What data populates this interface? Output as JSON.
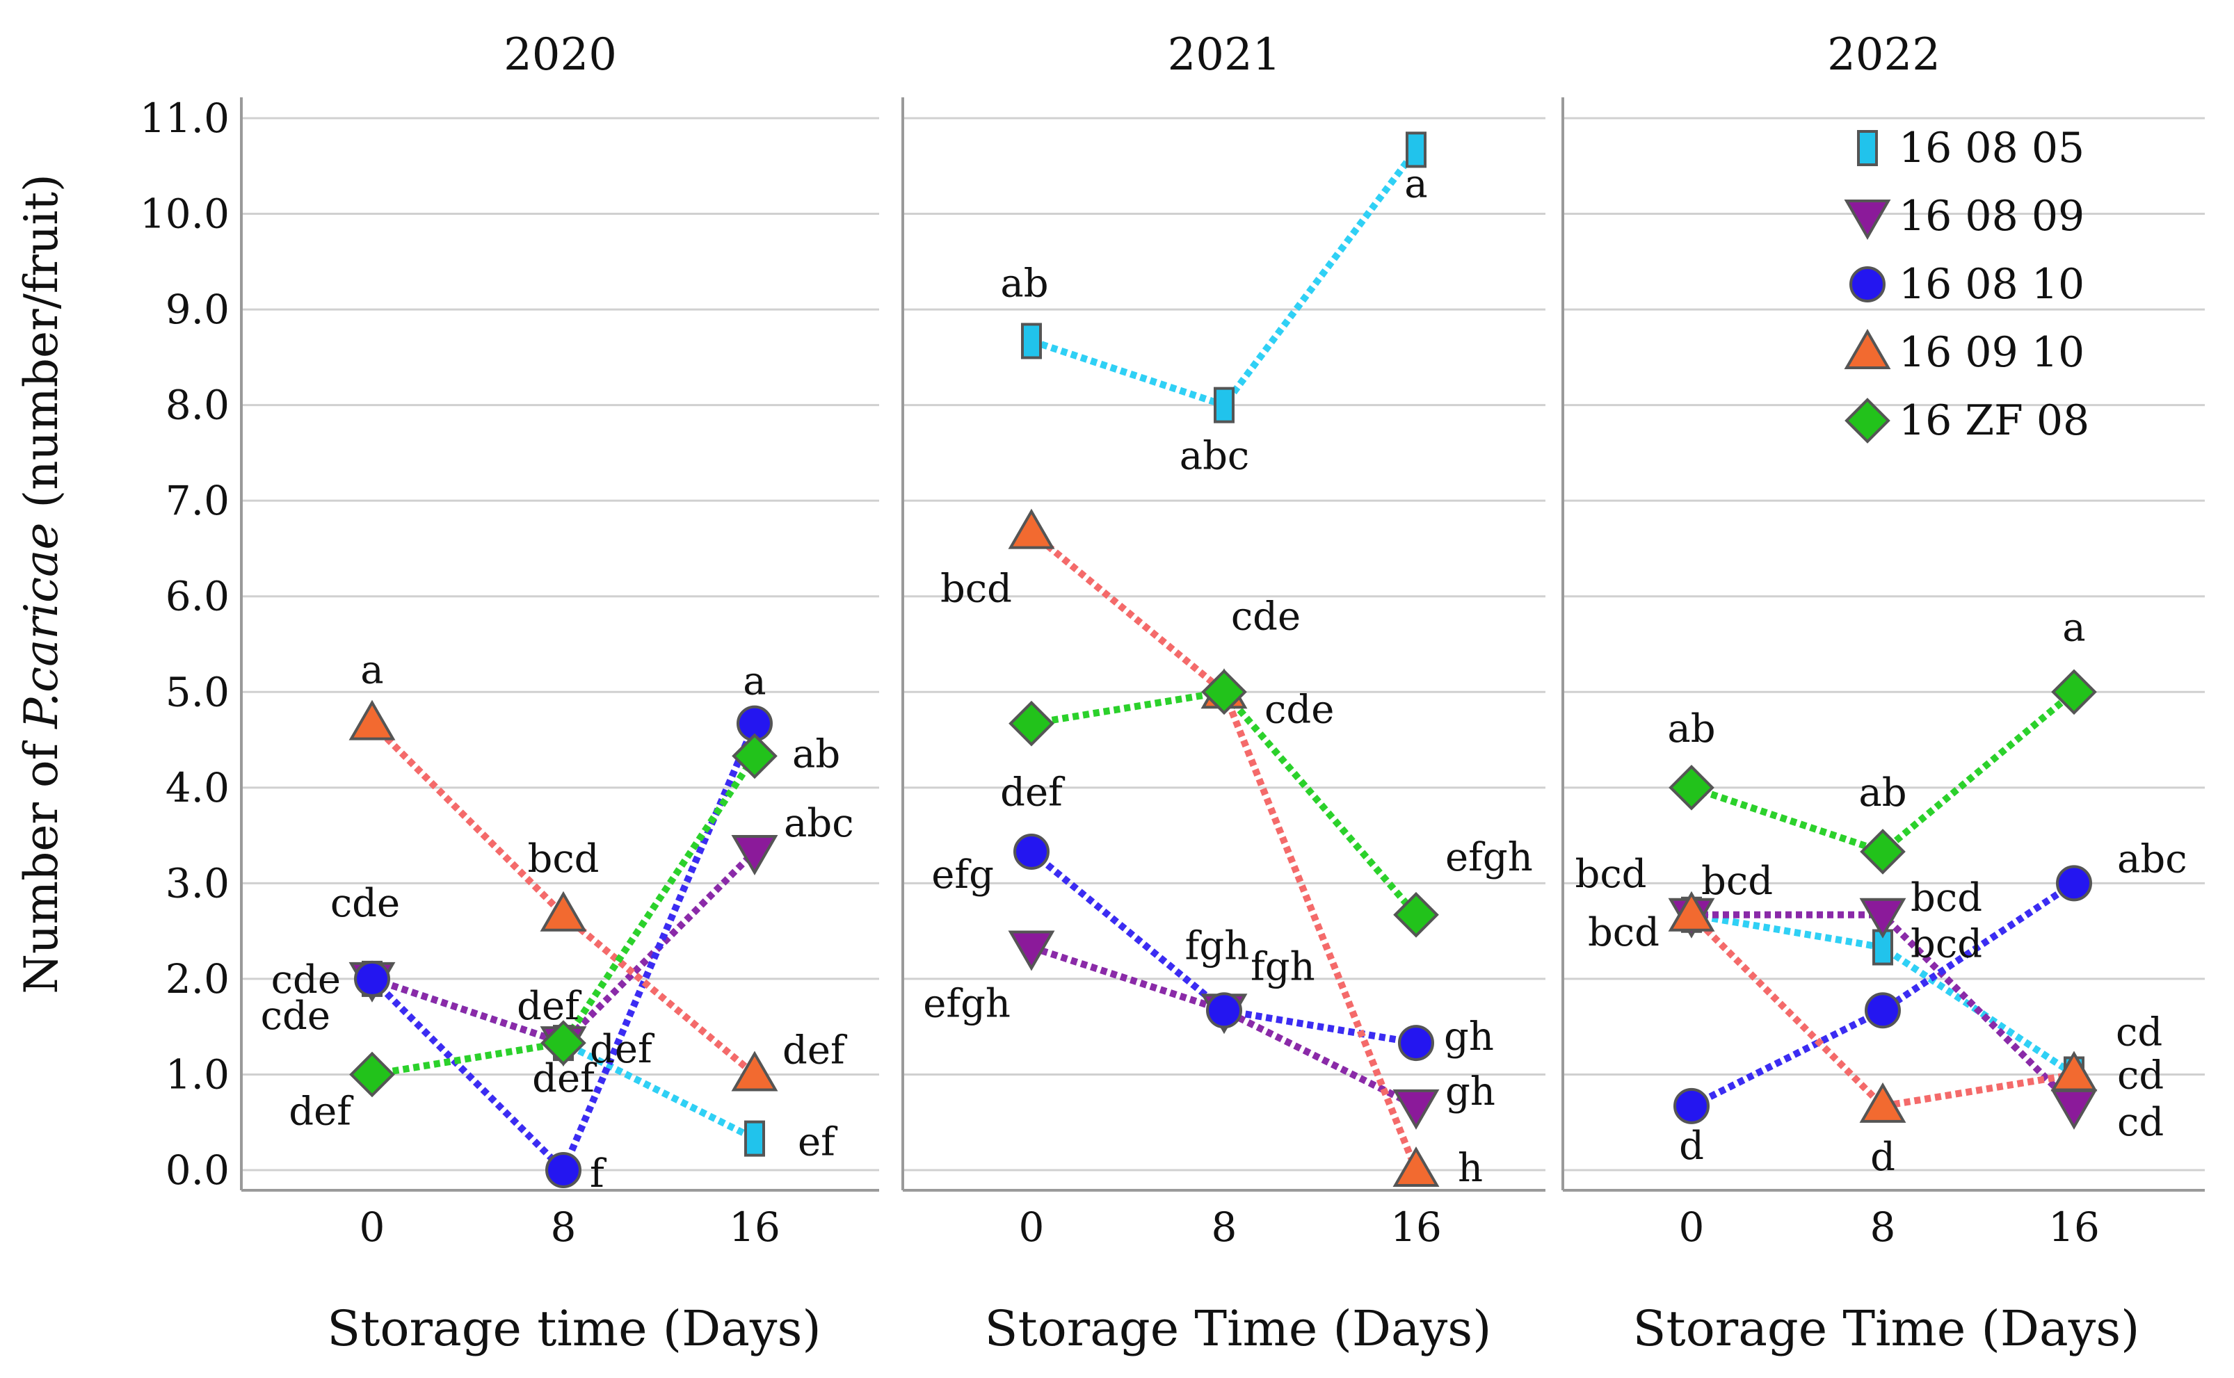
{
  "figure": {
    "ylabel_pre": "Number of ",
    "ylabel_species": "P.caricae",
    "ylabel_post": " (number/fruit)"
  },
  "legend": {
    "position": "top-right of 2022 panel",
    "items": [
      {
        "label": "16 08 05",
        "marker": "square",
        "color": "#21c3ec"
      },
      {
        "label": "16 08 09",
        "marker": "triangle-down",
        "color": "#8b1a9a"
      },
      {
        "label": "16 08 10",
        "marker": "circle",
        "color": "#2416f0"
      },
      {
        "label": "16 09 10",
        "marker": "triangle-up",
        "color": "#f26a30"
      },
      {
        "label": "16 ZF 08",
        "marker": "diamond",
        "color": "#22c21b"
      }
    ]
  },
  "colors": {
    "line_16_08_05": "#2fd0f5",
    "line_16_08_09": "#8a2aa8",
    "line_16_08_10": "#3b2cf2",
    "line_16_09_10": "#f46a6a",
    "line_16_ZF_08": "#2bd12b",
    "grid": "#d0d0d0",
    "frame": "#9a9a9a"
  },
  "chart_data": [
    {
      "type": "line",
      "title": "2020",
      "xlabel": "Storage time (Days)",
      "ylabel": "Number of P.caricae (number/fruit)",
      "x": [
        0,
        8,
        16
      ],
      "ylim": [
        0,
        11
      ],
      "yticks": [
        "0.0",
        "1.0",
        "2.0",
        "3.0",
        "4.0",
        "5.0",
        "6.0",
        "7.0",
        "8.0",
        "9.0",
        "10.0",
        "11.0"
      ],
      "grid": true,
      "series": [
        {
          "name": "16 08 05",
          "values": [
            2.0,
            1.33,
            0.33
          ],
          "letters": [
            "cde",
            "def",
            "ef"
          ]
        },
        {
          "name": "16 08 09",
          "values": [
            2.0,
            1.33,
            3.33
          ],
          "letters": [
            "cde",
            "def",
            "abc"
          ]
        },
        {
          "name": "16 08 10",
          "values": [
            2.0,
            0.0,
            4.67
          ],
          "letters": [
            "cde",
            "f",
            "a"
          ]
        },
        {
          "name": "16 09 10",
          "values": [
            4.67,
            2.67,
            1.0
          ],
          "letters": [
            "a",
            "bcd",
            "def"
          ]
        },
        {
          "name": "16 ZF 08",
          "values": [
            1.0,
            1.33,
            4.33
          ],
          "letters": [
            "def",
            "def",
            "ab"
          ]
        }
      ]
    },
    {
      "type": "line",
      "title": "2021",
      "xlabel": "Storage Time (Days)",
      "ylabel": "Number of P.caricae (number/fruit)",
      "x": [
        0,
        8,
        16
      ],
      "ylim": [
        0,
        11
      ],
      "grid": true,
      "series": [
        {
          "name": "16 08 05",
          "values": [
            8.67,
            8.0,
            10.67
          ],
          "letters": [
            "ab",
            "abc",
            "a"
          ]
        },
        {
          "name": "16 08 09",
          "values": [
            2.33,
            1.67,
            0.67
          ],
          "letters": [
            "efgh",
            "fgh",
            "gh"
          ]
        },
        {
          "name": "16 08 10",
          "values": [
            3.33,
            1.67,
            1.33
          ],
          "letters": [
            "efg",
            "fgh",
            "gh"
          ]
        },
        {
          "name": "16 09 10",
          "values": [
            6.67,
            5.0,
            0.0
          ],
          "letters": [
            "bcd",
            "cde",
            "h"
          ]
        },
        {
          "name": "16 ZF 08",
          "values": [
            4.67,
            5.0,
            2.67
          ],
          "letters": [
            "def",
            "cde",
            "efgh"
          ]
        }
      ]
    },
    {
      "type": "line",
      "title": "2022",
      "xlabel": "Storage Time (Days)",
      "ylabel": "Number of P.caricae (number/fruit)",
      "x": [
        0,
        8,
        16
      ],
      "ylim": [
        0,
        11
      ],
      "grid": true,
      "series": [
        {
          "name": "16 08 05",
          "values": [
            2.67,
            2.33,
            1.0
          ],
          "letters": [
            "bcd",
            "bcd",
            "cd"
          ]
        },
        {
          "name": "16 08 09",
          "values": [
            2.67,
            2.67,
            0.67
          ],
          "letters": [
            "bcd",
            "bcd",
            "cd"
          ]
        },
        {
          "name": "16 08 10",
          "values": [
            0.67,
            1.67,
            3.0
          ],
          "letters": [
            "d",
            "",
            "abc"
          ]
        },
        {
          "name": "16 09 10",
          "values": [
            2.67,
            0.67,
            1.0
          ],
          "letters": [
            "bcd",
            "d",
            "cd"
          ]
        },
        {
          "name": "16 ZF 08",
          "values": [
            4.0,
            3.33,
            5.0
          ],
          "letters": [
            "ab",
            "ab",
            "a"
          ]
        }
      ]
    }
  ]
}
